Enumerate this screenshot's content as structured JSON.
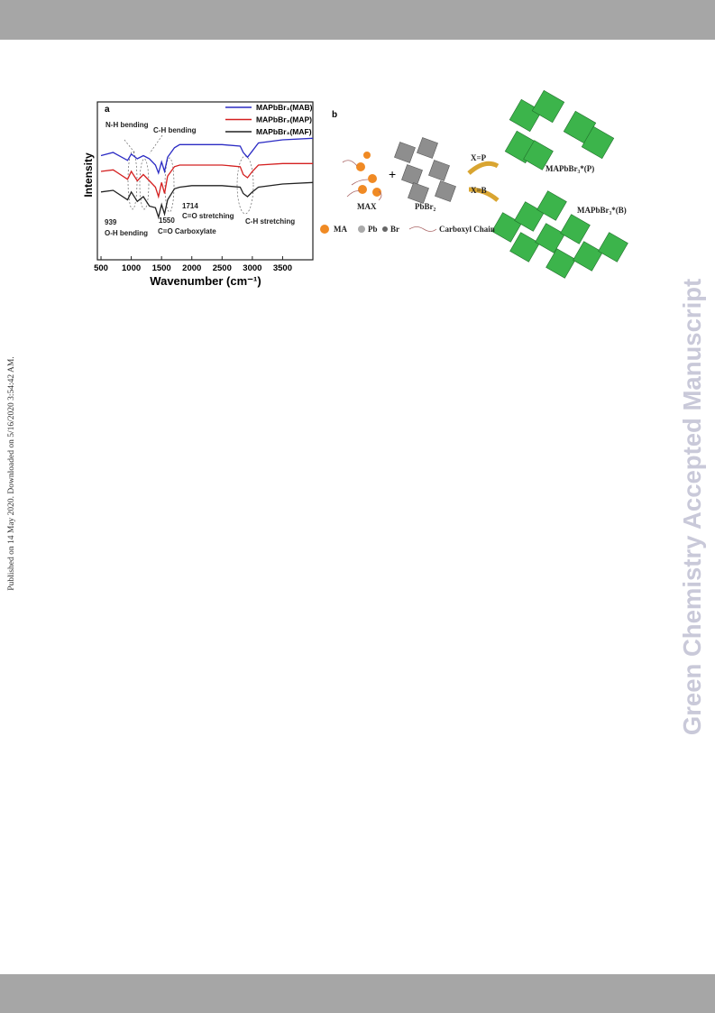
{
  "margin_note": "Published on 14 May 2020. Downloaded on 5/16/2020 3:54:42 AM.",
  "watermark": "Green Chemistry Accepted Manuscript",
  "chart_data": {
    "type": "line",
    "panel_label": "a",
    "x_label": "Wavenumber (cm⁻¹)",
    "y_label": "Intensity",
    "x": [
      500,
      700,
      939,
      1000,
      1100,
      1200,
      1300,
      1400,
      1450,
      1500,
      1550,
      1600,
      1714,
      1800,
      2000,
      2500,
      2800,
      2850,
      2920,
      3000,
      3100,
      3500,
      4000
    ],
    "series": [
      {
        "name": "MAPbBr₃(MAB)",
        "color": "#2b2bc4",
        "values": [
          6.6,
          6.8,
          6.3,
          6.7,
          6.4,
          6.6,
          6.4,
          6.0,
          5.5,
          6.2,
          5.6,
          6.5,
          7.1,
          7.3,
          7.3,
          7.3,
          7.2,
          6.8,
          6.5,
          6.9,
          7.4,
          7.6,
          7.7
        ]
      },
      {
        "name": "MAPbBr₃(MAP)",
        "color": "#d42020",
        "values": [
          5.6,
          5.7,
          5.1,
          5.6,
          5.0,
          5.4,
          5.0,
          4.6,
          4.0,
          4.9,
          4.2,
          5.3,
          5.9,
          6.0,
          6.0,
          6.0,
          5.9,
          5.4,
          5.2,
          5.6,
          6.0,
          6.1,
          6.1
        ]
      },
      {
        "name": "MAPbBr₃(MAF)",
        "color": "#222222",
        "values": [
          4.3,
          4.4,
          3.8,
          4.3,
          3.7,
          4.0,
          3.4,
          3.3,
          2.7,
          3.5,
          2.9,
          3.8,
          4.5,
          4.6,
          4.7,
          4.7,
          4.6,
          4.2,
          4.0,
          4.3,
          4.6,
          4.8,
          4.9
        ]
      }
    ],
    "xlim": [
      440,
      4000
    ],
    "xticks": [
      500,
      1000,
      1500,
      2000,
      2500,
      3000,
      3500
    ],
    "ylim": [
      0,
      10
    ],
    "legend": "top-right",
    "annotations": [
      "N-H bending",
      "C-H bending",
      "939",
      "O-H bending",
      "1550",
      "C=O Carboxylate",
      "1714",
      "C=O stretching",
      "C-H stretching"
    ]
  },
  "diagram": {
    "panel_label": "b",
    "reactant_1": "MAX",
    "plus": "+",
    "reactant_2": "PbBr₂",
    "arrow_1": "X=P",
    "arrow_2": "X=B",
    "product_1": "MAPbBr₃*(P)",
    "product_2": "MAPbBr₃*(B)",
    "legend": [
      "MA",
      "Pb",
      "Br",
      "Carboxyl Chain"
    ]
  }
}
